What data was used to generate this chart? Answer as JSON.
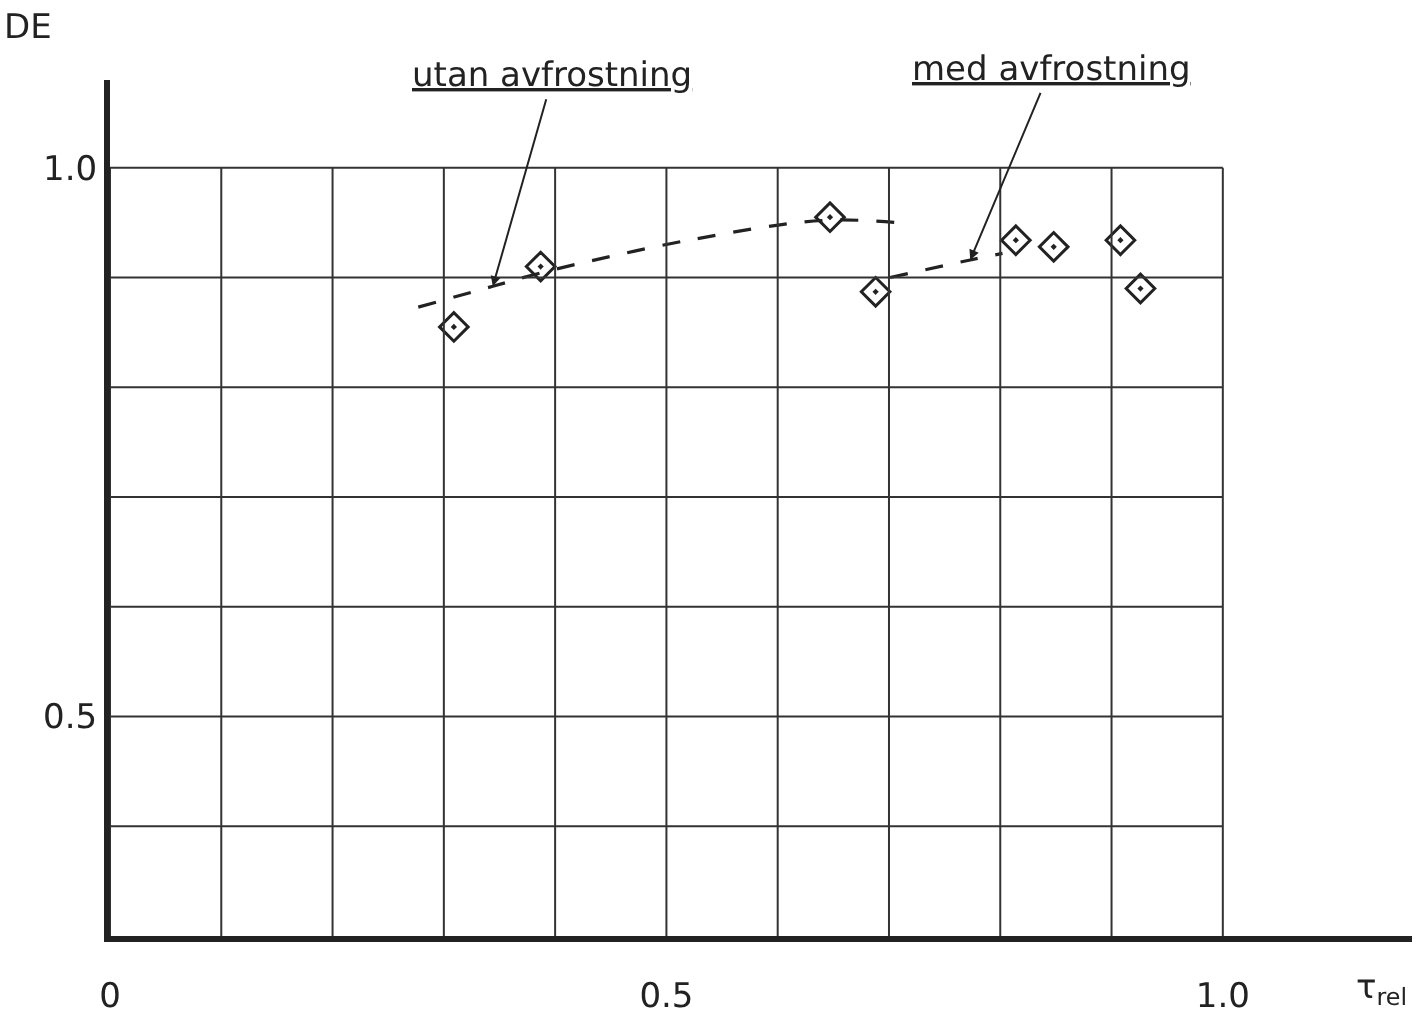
{
  "chart_data": {
    "type": "scatter",
    "xlabel": "τ$_{rel}$",
    "ylabel": "DE",
    "xlim": [
      0,
      1.17
    ],
    "ylim": [
      0.3,
      1.08
    ],
    "xticks": [
      {
        "value": 0,
        "label": "0"
      },
      {
        "value": 0.1,
        "label": null
      },
      {
        "value": 0.2,
        "label": null
      },
      {
        "value": 0.3,
        "label": null
      },
      {
        "value": 0.4,
        "label": null
      },
      {
        "value": 0.5,
        "label": "0.5"
      },
      {
        "value": 0.6,
        "label": null
      },
      {
        "value": 0.7,
        "label": null
      },
      {
        "value": 0.8,
        "label": null
      },
      {
        "value": 0.9,
        "label": null
      },
      {
        "value": 1.0,
        "label": "1.0"
      }
    ],
    "yticks": [
      {
        "value": 0.4,
        "label": null
      },
      {
        "value": 0.5,
        "label": "0.5"
      },
      {
        "value": 0.6,
        "label": null
      },
      {
        "value": 0.7,
        "label": null
      },
      {
        "value": 0.8,
        "label": null
      },
      {
        "value": 0.9,
        "label": null
      },
      {
        "value": 1.0,
        "label": "1.0"
      }
    ],
    "grid": true,
    "series": [
      {
        "marker": "diamond",
        "color": "#222222",
        "x": [
          0.309,
          0.387,
          0.647,
          0.688,
          0.814,
          0.848,
          0.908,
          0.926
        ],
        "values": [
          0.855,
          0.91,
          0.955,
          0.887,
          0.934,
          0.928,
          0.934,
          0.89
        ]
      },
      {
        "type": "line",
        "marker": "none",
        "line_style": "dashed",
        "color": "#222222",
        "x": [
          0.277,
          0.344,
          0.39,
          0.52,
          0.64,
          0.708
        ],
        "values": [
          0.873,
          0.892,
          0.905,
          0.934,
          0.952,
          0.95
        ]
      },
      {
        "type": "line",
        "marker": "none",
        "line_style": "dashed",
        "color": "#222222",
        "x": [
          0.701,
          0.773,
          0.802
        ],
        "values": [
          0.9,
          0.916,
          0.922
        ]
      }
    ],
    "annotations": [
      {
        "text": "utan avfrostning",
        "x": 0.344,
        "y": 0.892
      },
      {
        "text": "med avfrostning",
        "x": 0.773,
        "y": 0.916
      }
    ]
  }
}
